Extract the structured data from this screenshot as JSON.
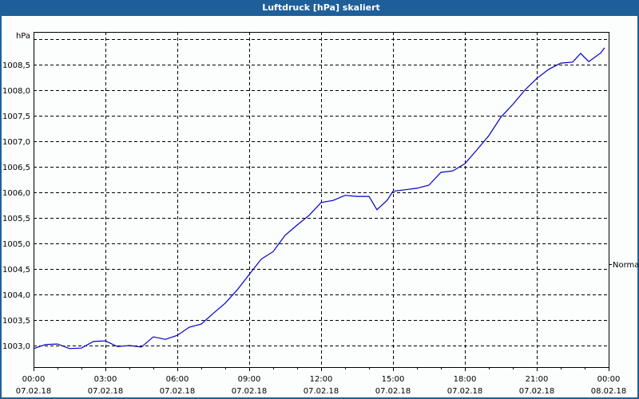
{
  "window": {
    "title": "Luftdruck [hPa] skaliert",
    "title_bar_color": "#1f5f99"
  },
  "legend": {
    "label": "Normal"
  },
  "chart_data": {
    "type": "line",
    "title": "Luftdruck [hPa] skaliert",
    "xlabel": "",
    "ylabel": "hPa",
    "ylim": [
      1002.6,
      1009.1
    ],
    "xlim_hours": [
      0,
      24
    ],
    "grid": true,
    "legend_position": "right",
    "line_color": "#0000c0",
    "y_ticks": [
      "1003,0",
      "1003,5",
      "1004,0",
      "1004,5",
      "1005,0",
      "1005,5",
      "1006,0",
      "1006,5",
      "1007,0",
      "1007,5",
      "1008,0",
      "1008,5"
    ],
    "y_tick_values": [
      1003.0,
      1003.5,
      1004.0,
      1004.5,
      1005.0,
      1005.5,
      1006.0,
      1006.5,
      1007.0,
      1007.5,
      1008.0,
      1008.5
    ],
    "x_ticks": [
      {
        "time": "00:00",
        "date": "07.02.18"
      },
      {
        "time": "03:00",
        "date": "07.02.18"
      },
      {
        "time": "06:00",
        "date": "07.02.18"
      },
      {
        "time": "09:00",
        "date": "07.02.18"
      },
      {
        "time": "12:00",
        "date": "07.02.18"
      },
      {
        "time": "15:00",
        "date": "07.02.18"
      },
      {
        "time": "18:00",
        "date": "07.02.18"
      },
      {
        "time": "21:00",
        "date": "07.02.18"
      },
      {
        "time": "00:00",
        "date": "08.02.18"
      }
    ],
    "series": [
      {
        "name": "Normal",
        "x_hours": [
          0,
          0.5,
          1,
          1.5,
          2,
          2.5,
          3,
          3.5,
          4,
          4.5,
          5,
          5.5,
          6,
          6.5,
          7,
          7.5,
          8,
          8.5,
          9,
          9.5,
          10,
          10.5,
          11,
          11.5,
          12,
          12.5,
          13,
          13.5,
          14,
          14.33,
          14.75,
          15,
          15.5,
          16,
          16.5,
          17,
          17.5,
          18,
          18.5,
          19,
          19.5,
          20,
          20.5,
          21,
          21.5,
          22,
          22.5,
          22.83,
          23.17,
          23.67,
          23.83
        ],
        "values": [
          1002.94,
          1003.02,
          1003.03,
          1002.94,
          1002.95,
          1003.08,
          1003.09,
          1002.98,
          1003.0,
          1002.97,
          1003.17,
          1003.12,
          1003.2,
          1003.36,
          1003.42,
          1003.63,
          1003.83,
          1004.09,
          1004.39,
          1004.69,
          1004.84,
          1005.16,
          1005.36,
          1005.55,
          1005.8,
          1005.84,
          1005.94,
          1005.92,
          1005.92,
          1005.66,
          1005.84,
          1006.02,
          1006.05,
          1006.08,
          1006.14,
          1006.39,
          1006.42,
          1006.56,
          1006.83,
          1007.11,
          1007.47,
          1007.72,
          1008.0,
          1008.23,
          1008.41,
          1008.53,
          1008.55,
          1008.72,
          1008.56,
          1008.73,
          1008.83
        ]
      }
    ]
  }
}
